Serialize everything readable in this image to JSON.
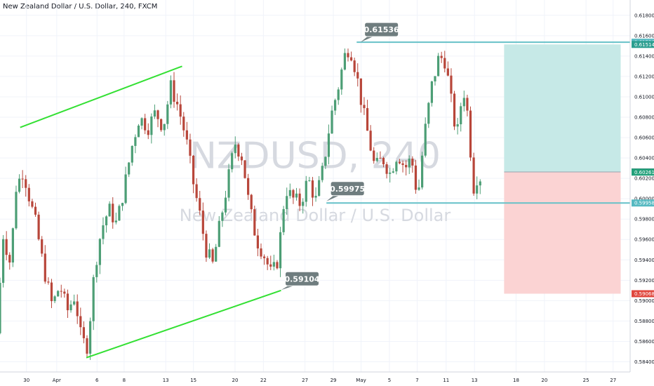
{
  "chart_data": {
    "type": "candlestick",
    "title": "New Zealand Dollar / U.S. Dollar, 240, FXCM",
    "watermark_symbol": "NZDUSD, 240",
    "watermark_name": "New Zealand Dollar / U.S. Dollar",
    "ylim": [
      0.583,
      0.6195
    ],
    "y_ticks": [
      "0.61800",
      "0.61600",
      "0.61400",
      "0.61200",
      "0.61000",
      "0.60800",
      "0.60600",
      "0.60400",
      "0.60200",
      "0.60000",
      "0.59800",
      "0.59600",
      "0.59400",
      "0.59200",
      "0.59000",
      "0.58800",
      "0.58600",
      "0.58400"
    ],
    "x_ticks": [
      {
        "label": "30",
        "pos": 0.042
      },
      {
        "label": "Apr",
        "pos": 0.09
      },
      {
        "label": "6",
        "pos": 0.154
      },
      {
        "label": "8",
        "pos": 0.197
      },
      {
        "label": "13",
        "pos": 0.263
      },
      {
        "label": "15",
        "pos": 0.307
      },
      {
        "label": "20",
        "pos": 0.373
      },
      {
        "label": "22",
        "pos": 0.418
      },
      {
        "label": "27",
        "pos": 0.484
      },
      {
        "label": "29",
        "pos": 0.529
      },
      {
        "label": "May",
        "pos": 0.573
      },
      {
        "label": "5",
        "pos": 0.618
      },
      {
        "label": "7",
        "pos": 0.662
      },
      {
        "label": "11",
        "pos": 0.708
      },
      {
        "label": "13",
        "pos": 0.753
      },
      {
        "label": "18",
        "pos": 0.819
      },
      {
        "label": "20",
        "pos": 0.864
      },
      {
        "label": "25",
        "pos": 0.93
      },
      {
        "label": "27",
        "pos": 0.973
      }
    ],
    "price_path": [
      [
        0.0,
        0.5868
      ],
      [
        0.01,
        0.5965
      ],
      [
        0.022,
        0.5935
      ],
      [
        0.03,
        0.601
      ],
      [
        0.042,
        0.6028
      ],
      [
        0.052,
        0.6
      ],
      [
        0.062,
        0.5975
      ],
      [
        0.075,
        0.593
      ],
      [
        0.088,
        0.5895
      ],
      [
        0.1,
        0.5915
      ],
      [
        0.112,
        0.589
      ],
      [
        0.124,
        0.5905
      ],
      [
        0.134,
        0.5862
      ],
      [
        0.144,
        0.5855
      ],
      [
        0.155,
        0.593
      ],
      [
        0.166,
        0.597
      ],
      [
        0.178,
        0.599
      ],
      [
        0.19,
        0.5975
      ],
      [
        0.202,
        0.601
      ],
      [
        0.214,
        0.605
      ],
      [
        0.226,
        0.608
      ],
      [
        0.24,
        0.607
      ],
      [
        0.252,
        0.6085
      ],
      [
        0.264,
        0.607
      ],
      [
        0.276,
        0.611
      ],
      [
        0.288,
        0.609
      ],
      [
        0.3,
        0.606
      ],
      [
        0.312,
        0.6015
      ],
      [
        0.322,
        0.5985
      ],
      [
        0.332,
        0.595
      ],
      [
        0.343,
        0.5935
      ],
      [
        0.354,
        0.5975
      ],
      [
        0.366,
        0.6015
      ],
      [
        0.378,
        0.6055
      ],
      [
        0.39,
        0.604
      ],
      [
        0.4,
        0.5995
      ],
      [
        0.412,
        0.596
      ],
      [
        0.424,
        0.5945
      ],
      [
        0.436,
        0.5925
      ],
      [
        0.446,
        0.594
      ],
      [
        0.458,
        0.601
      ],
      [
        0.47,
        0.6
      ],
      [
        0.482,
        0.5995
      ],
      [
        0.494,
        0.602
      ],
      [
        0.506,
        0.5998
      ],
      [
        0.518,
        0.603
      ],
      [
        0.53,
        0.608
      ],
      [
        0.542,
        0.611
      ],
      [
        0.552,
        0.614
      ],
      [
        0.56,
        0.615
      ],
      [
        0.57,
        0.6125
      ],
      [
        0.58,
        0.609
      ],
      [
        0.59,
        0.606
      ],
      [
        0.6,
        0.603
      ],
      [
        0.612,
        0.604
      ],
      [
        0.624,
        0.6025
      ],
      [
        0.636,
        0.6045
      ],
      [
        0.648,
        0.603
      ],
      [
        0.658,
        0.604
      ],
      [
        0.668,
        0.6
      ],
      [
        0.678,
        0.606
      ],
      [
        0.69,
        0.611
      ],
      [
        0.702,
        0.614
      ],
      [
        0.712,
        0.6135
      ],
      [
        0.72,
        0.61
      ],
      [
        0.73,
        0.606
      ],
      [
        0.74,
        0.611
      ],
      [
        0.748,
        0.608
      ],
      [
        0.756,
        0.601
      ],
      [
        0.762,
        0.6021
      ]
    ],
    "annotations": [
      {
        "text": "0.61536",
        "x": 0.572,
        "y": 0.61536,
        "dir": "up"
      },
      {
        "text": "0.59975",
        "x": 0.518,
        "y": 0.59975,
        "dir": "up"
      },
      {
        "text": "0.59104",
        "x": 0.446,
        "y": 0.59104,
        "dir": "down"
      }
    ],
    "channel_lines": [
      {
        "from": [
          0.032,
          0.607
        ],
        "to": [
          0.289,
          0.613
        ]
      },
      {
        "from": [
          0.137,
          0.5844
        ],
        "to": [
          0.446,
          0.591
        ]
      }
    ],
    "horizontal_levels": [
      {
        "from": 0.566,
        "price": 0.61536
      },
      {
        "from": 0.518,
        "price": 0.59958
      }
    ],
    "position": {
      "x_start": 0.8,
      "x_end": 0.985,
      "entry": 0.60263,
      "target": 0.61514,
      "stop": 0.59068
    },
    "price_tags": [
      {
        "text": "0.61536",
        "price": 0.61536,
        "color": "#56b9c1"
      },
      {
        "text": "0.61514",
        "price": 0.61514,
        "color": "#2b9e8f"
      },
      {
        "text": "0.60263",
        "price": 0.60263,
        "color": "#6b7583"
      },
      {
        "text": "0.60261",
        "price": 0.60261,
        "color": "#22a07a"
      },
      {
        "text": "0.59958",
        "price": 0.59958,
        "color": "#56b9c1"
      },
      {
        "text": "0.59068",
        "price": 0.59068,
        "color": "#e0473e"
      }
    ],
    "colors": {
      "up": "#4c9e75",
      "down": "#b8463a",
      "channel": "#33e033",
      "level": "#66c1c8",
      "target_zone": "#c6e9e7",
      "stop_zone": "#fbd3d3",
      "callout": "#6f7d7f"
    }
  }
}
